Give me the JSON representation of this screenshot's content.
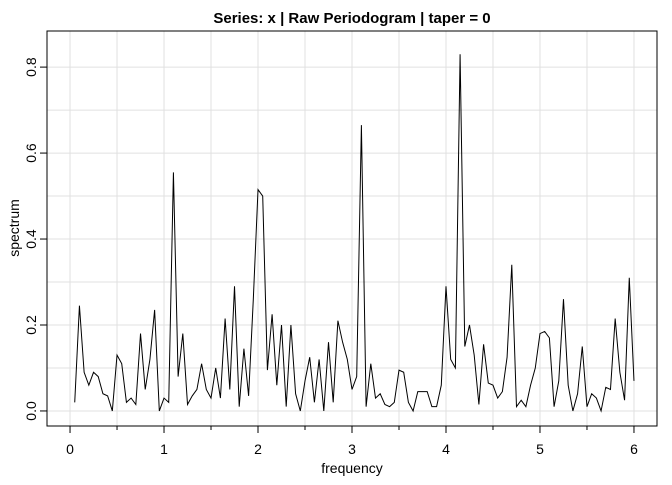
{
  "chart_data": {
    "type": "line",
    "title": "Series: x  |  Raw Periodogram  |  taper = 0",
    "x_label": "frequency",
    "y_label": "spectrum",
    "x": [
      0.05,
      0.1,
      0.15,
      0.2,
      0.25,
      0.3,
      0.35,
      0.4,
      0.45,
      0.5,
      0.55,
      0.6,
      0.65,
      0.7,
      0.75,
      0.8,
      0.85,
      0.9,
      0.95,
      1,
      1.05,
      1.1,
      1.15,
      1.2,
      1.25,
      1.3,
      1.35,
      1.4,
      1.45,
      1.5,
      1.55,
      1.6,
      1.65,
      1.7,
      1.75,
      1.8,
      1.85,
      1.9,
      1.95,
      2,
      2.05,
      2.1,
      2.15,
      2.2,
      2.25,
      2.3,
      2.35,
      2.4,
      2.45,
      2.5,
      2.55,
      2.6,
      2.65,
      2.7,
      2.75,
      2.8,
      2.85,
      2.9,
      2.95,
      3,
      3.05,
      3.1,
      3.15,
      3.2,
      3.25,
      3.3,
      3.35,
      3.4,
      3.45,
      3.5,
      3.55,
      3.6,
      3.65,
      3.7,
      3.75,
      3.8,
      3.85,
      3.9,
      3.95,
      4,
      4.05,
      4.1,
      4.15,
      4.2,
      4.25,
      4.3,
      4.35,
      4.4,
      4.45,
      4.5,
      4.55,
      4.6,
      4.65,
      4.7,
      4.75,
      4.8,
      4.85,
      4.9,
      4.95,
      5,
      5.05,
      5.1,
      5.15,
      5.2,
      5.25,
      5.3,
      5.35,
      5.4,
      5.45,
      5.5,
      5.55,
      5.6,
      5.65,
      5.7,
      5.75,
      5.8,
      5.85,
      5.9,
      5.95,
      6
    ],
    "series": [
      {
        "color": "#000000",
        "values": [
          0.02,
          0.245,
          0.09,
          0.06,
          0.09,
          0.08,
          0.04,
          0.035,
          0.0,
          0.13,
          0.11,
          0.02,
          0.03,
          0.015,
          0.18,
          0.05,
          0.12,
          0.235,
          0.0,
          0.03,
          0.02,
          0.555,
          0.08,
          0.18,
          0.015,
          0.035,
          0.05,
          0.11,
          0.05,
          0.03,
          0.1,
          0.03,
          0.215,
          0.05,
          0.29,
          0.01,
          0.145,
          0.035,
          0.26,
          0.515,
          0.5,
          0.095,
          0.225,
          0.06,
          0.2,
          0.01,
          0.2,
          0.04,
          0.0,
          0.07,
          0.125,
          0.02,
          0.12,
          0.0,
          0.16,
          0.02,
          0.21,
          0.16,
          0.12,
          0.05,
          0.08,
          0.665,
          0.01,
          0.11,
          0.03,
          0.04,
          0.015,
          0.01,
          0.02,
          0.095,
          0.09,
          0.02,
          0.0,
          0.045,
          0.045,
          0.045,
          0.01,
          0.01,
          0.06,
          0.29,
          0.12,
          0.1,
          0.83,
          0.15,
          0.2,
          0.13,
          0.015,
          0.155,
          0.065,
          0.06,
          0.03,
          0.045,
          0.125,
          0.34,
          0.01,
          0.025,
          0.01,
          0.06,
          0.1,
          0.18,
          0.185,
          0.17,
          0.01,
          0.07,
          0.26,
          0.06,
          0.0,
          0.04,
          0.15,
          0.01,
          0.04,
          0.03,
          0.0,
          0.055,
          0.05,
          0.215,
          0.09,
          0.025,
          0.31,
          0.07
        ]
      }
    ],
    "xlim": [
      -0.245,
      6.245
    ],
    "ylim": [
      -0.035,
      0.884
    ],
    "xticks": [
      0,
      1,
      2,
      3,
      4,
      5,
      6
    ],
    "yticks": [
      {
        "value": 0,
        "label": "0.0"
      },
      0.2,
      0.4,
      0.6,
      0.8
    ],
    "grid": true
  }
}
